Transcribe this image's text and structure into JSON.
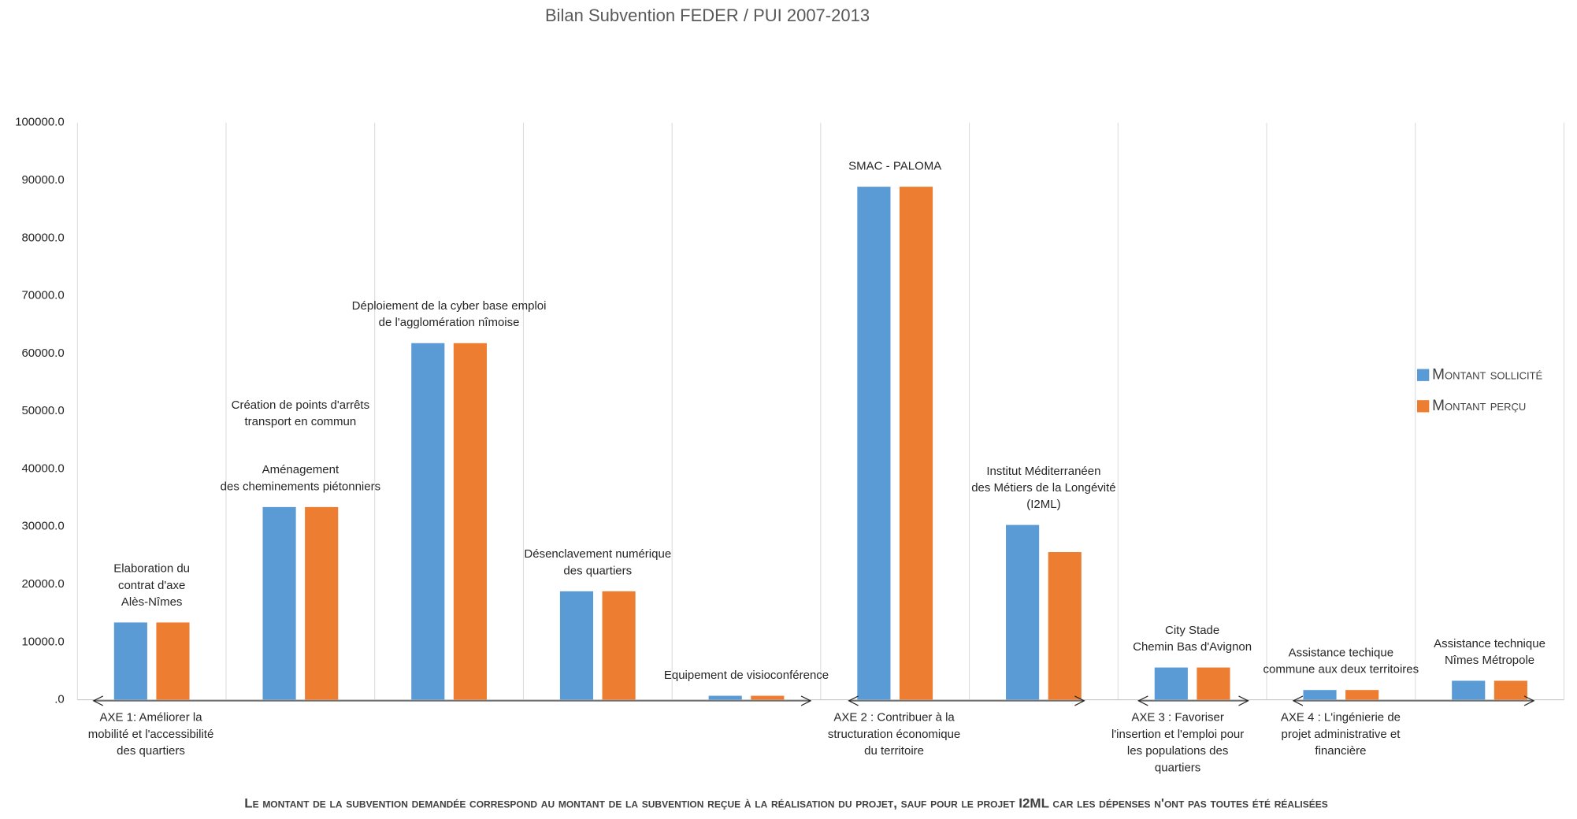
{
  "chart_data": {
    "type": "bar",
    "title": "Bilan Subvention FEDER / PUI 2007-2013",
    "categories": [
      [
        [
          "Elaboration du",
          "contrat d'axe",
          "Alès-Nîmes"
        ]
      ],
      [
        [
          "Création de points d'arrêts",
          "transport en commun"
        ],
        [
          "Aménagement",
          "des cheminements piétonniers"
        ]
      ],
      [
        [
          "Déploiement de la cyber base emploi",
          "de l'agglomération nîmoise"
        ]
      ],
      [
        [
          "Désenclavement numérique",
          "des quartiers"
        ]
      ],
      [
        [
          "Equipement de visioconférence"
        ]
      ],
      [
        [
          "SMAC - PALOMA"
        ]
      ],
      [
        [
          "Institut Méditerranéen",
          "des Métiers de la Longévité",
          "(I2ML)"
        ]
      ],
      [
        [
          "City Stade",
          "Chemin Bas d'Avignon"
        ]
      ],
      [
        [
          "Assistance techique",
          "commune aux deux territoires"
        ]
      ],
      [
        [
          "Assistance technique",
          "Nîmes Métropole"
        ]
      ]
    ],
    "series": [
      {
        "name": "Montant sollicité",
        "color": "#5b9bd5",
        "values": [
          13400,
          33400,
          61800,
          18800,
          700,
          88900,
          30300,
          5600,
          1700,
          3300
        ]
      },
      {
        "name": "Montant perçu",
        "color": "#ed7d31",
        "values": [
          13400,
          33400,
          61800,
          18800,
          700,
          88900,
          25600,
          5600,
          1700,
          3300
        ]
      }
    ],
    "axes": [
      [
        "AXE 1: Améliorer la",
        "mobilité et l'accessibilité",
        "des quartiers"
      ],
      [
        "AXE 2 : Contribuer à la",
        "structuration économique",
        "du territoire"
      ],
      [
        "AXE 3 : Favoriser",
        "l'insertion et l'emploi pour",
        "les populations des",
        "quartiers"
      ],
      [
        "AXE 4 : L'ingénierie de",
        "projet administrative et",
        "financière"
      ]
    ],
    "ylim": [
      0,
      100000
    ],
    "yticks": [
      {
        "value": 0,
        "label": ".0"
      },
      {
        "value": 10000,
        "label": "10000.0"
      },
      {
        "value": 20000,
        "label": "20000.0"
      },
      {
        "value": 30000,
        "label": "30000.0"
      },
      {
        "value": 40000,
        "label": "40000.0"
      },
      {
        "value": 50000,
        "label": "50000.0"
      },
      {
        "value": 60000,
        "label": "60000.0"
      },
      {
        "value": 70000,
        "label": "70000.0"
      },
      {
        "value": 80000,
        "label": "80000.0"
      },
      {
        "value": 90000,
        "label": "90000.0"
      },
      {
        "value": 100000,
        "label": "100000.0"
      }
    ],
    "grid": true,
    "legend": "right",
    "note": "Le montant de la subvention demandée correspond au montant de la subvention reçue à la réalisation du projet, sauf pour le projet I2ML car les dépenses n'ont pas toutes été réalisées"
  }
}
